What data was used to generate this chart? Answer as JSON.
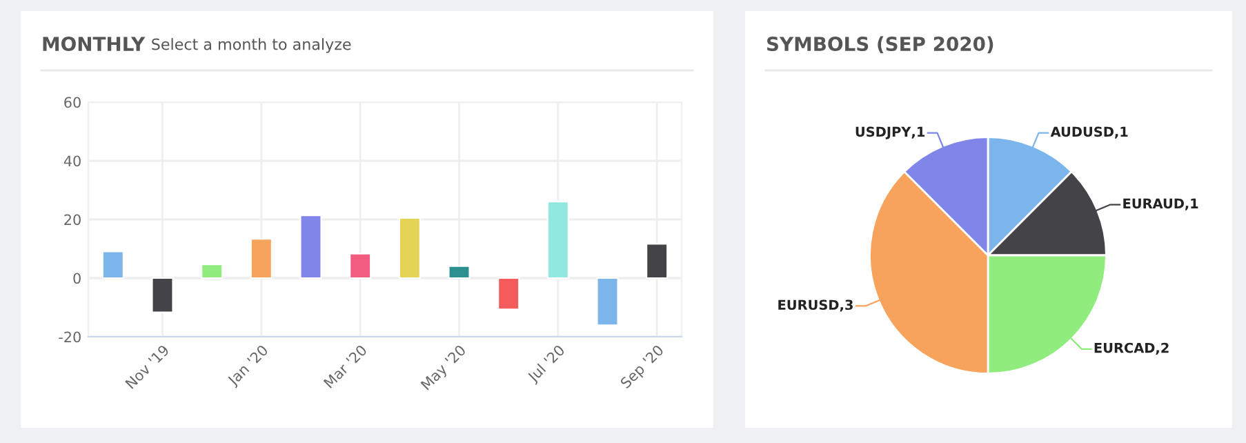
{
  "chart_data": [
    {
      "type": "bar",
      "title": "MONTHLY",
      "subtitle": "Select a month to analyze",
      "categories": [
        null,
        "Nov '19",
        null,
        "Jan '20",
        null,
        "Mar '20",
        null,
        "May '20",
        null,
        "Jul '20",
        null,
        "Sep '20"
      ],
      "values": [
        9.1,
        -11.7,
        4.7,
        13.4,
        21.4,
        8.3,
        20.5,
        4.1,
        -10.7,
        26.1,
        -16.1,
        11.7
      ],
      "colors": [
        "#7cb5ec",
        "#434348",
        "#90ed7d",
        "#f7a35c",
        "#8085e9",
        "#f15c80",
        "#e4d354",
        "#2b908f",
        "#f45b5b",
        "#91e8e1",
        "#7cb5ec",
        "#434348"
      ],
      "ylim": [
        -20,
        60
      ],
      "yticks": [
        -20,
        0,
        20,
        40,
        60
      ],
      "grid": true,
      "legend": false
    },
    {
      "type": "pie",
      "title": "SYMBOLS (SEP 2020)",
      "categories": [
        "AUDUSD",
        "EURAUD",
        "EURCAD",
        "EURUSD",
        "USDJPY"
      ],
      "values": [
        1,
        1,
        2,
        3,
        1
      ],
      "colors": [
        "#7cb5ec",
        "#434348",
        "#90ed7d",
        "#f7a35c",
        "#8085e9"
      ],
      "value_labels": [
        ",1",
        ",1",
        ",2",
        ",3",
        ",1"
      ],
      "legend": false
    }
  ]
}
